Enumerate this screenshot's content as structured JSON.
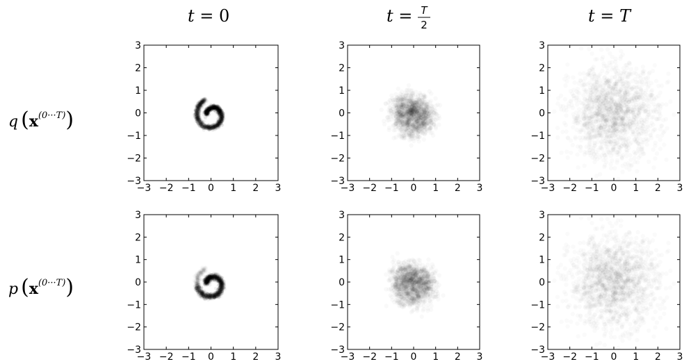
{
  "figure": {
    "column_titles": [
      {
        "t": "t",
        "eq": " = ",
        "val": "0"
      },
      {
        "t": "t",
        "eq": " = ",
        "num": "T",
        "den": "2"
      },
      {
        "t": "t",
        "eq": " = ",
        "val": "T"
      }
    ],
    "row_labels": [
      {
        "fn": "q",
        "x": "x",
        "sup": "(0···T)"
      },
      {
        "fn": "p",
        "x": "x",
        "sup": "(0···T)"
      }
    ]
  },
  "chart_data": [
    {
      "type": "scatter",
      "row": "q",
      "column": "t = 0",
      "distribution": "swiss-roll spiral, tight",
      "spread": 0.05,
      "alpha": 0.05,
      "xlim": [
        -3,
        3
      ],
      "ylim": [
        -3,
        3
      ],
      "xticks": [
        -3,
        -2,
        -1,
        0,
        1,
        2,
        3
      ],
      "yticks": [
        -3,
        -2,
        -1,
        0,
        1,
        2,
        3
      ]
    },
    {
      "type": "scatter",
      "row": "q",
      "column": "t = T/2",
      "distribution": "swiss-roll spiral, diffused",
      "spread": 0.28,
      "alpha": 0.025,
      "xlim": [
        -3,
        3
      ],
      "ylim": [
        -3,
        3
      ],
      "xticks": [
        -3,
        -2,
        -1,
        0,
        1,
        2,
        3
      ],
      "yticks": [
        -3,
        -2,
        -1,
        0,
        1,
        2,
        3
      ]
    },
    {
      "type": "scatter",
      "row": "q",
      "column": "t = T",
      "distribution": "isotropic Gaussian",
      "spread": 1.0,
      "alpha": 0.02,
      "xlim": [
        -3,
        3
      ],
      "ylim": [
        -3,
        3
      ],
      "xticks": [
        -3,
        -2,
        -1,
        0,
        1,
        2,
        3
      ],
      "yticks": [
        -3,
        -2,
        -1,
        0,
        1,
        2,
        3
      ]
    },
    {
      "type": "scatter",
      "row": "p",
      "column": "t = 0",
      "distribution": "swiss-roll spiral, tight (faint tail)",
      "spread": 0.06,
      "alpha": 0.05,
      "xlim": [
        -3,
        3
      ],
      "ylim": [
        -3,
        3
      ],
      "xticks": [
        -3,
        -2,
        -1,
        0,
        1,
        2,
        3
      ],
      "yticks": [
        -3,
        -2,
        -1,
        0,
        1,
        2,
        3
      ]
    },
    {
      "type": "scatter",
      "row": "p",
      "column": "t = T/2",
      "distribution": "swiss-roll spiral, diffused",
      "spread": 0.3,
      "alpha": 0.025,
      "xlim": [
        -3,
        3
      ],
      "ylim": [
        -3,
        3
      ],
      "xticks": [
        -3,
        -2,
        -1,
        0,
        1,
        2,
        3
      ],
      "yticks": [
        -3,
        -2,
        -1,
        0,
        1,
        2,
        3
      ]
    },
    {
      "type": "scatter",
      "row": "p",
      "column": "t = T",
      "distribution": "isotropic Gaussian",
      "spread": 1.0,
      "alpha": 0.02,
      "xlim": [
        -3,
        3
      ],
      "ylim": [
        -3,
        3
      ],
      "xticks": [
        -3,
        -2,
        -1,
        0,
        1,
        2,
        3
      ],
      "yticks": [
        -3,
        -2,
        -1,
        0,
        1,
        2,
        3
      ]
    }
  ]
}
